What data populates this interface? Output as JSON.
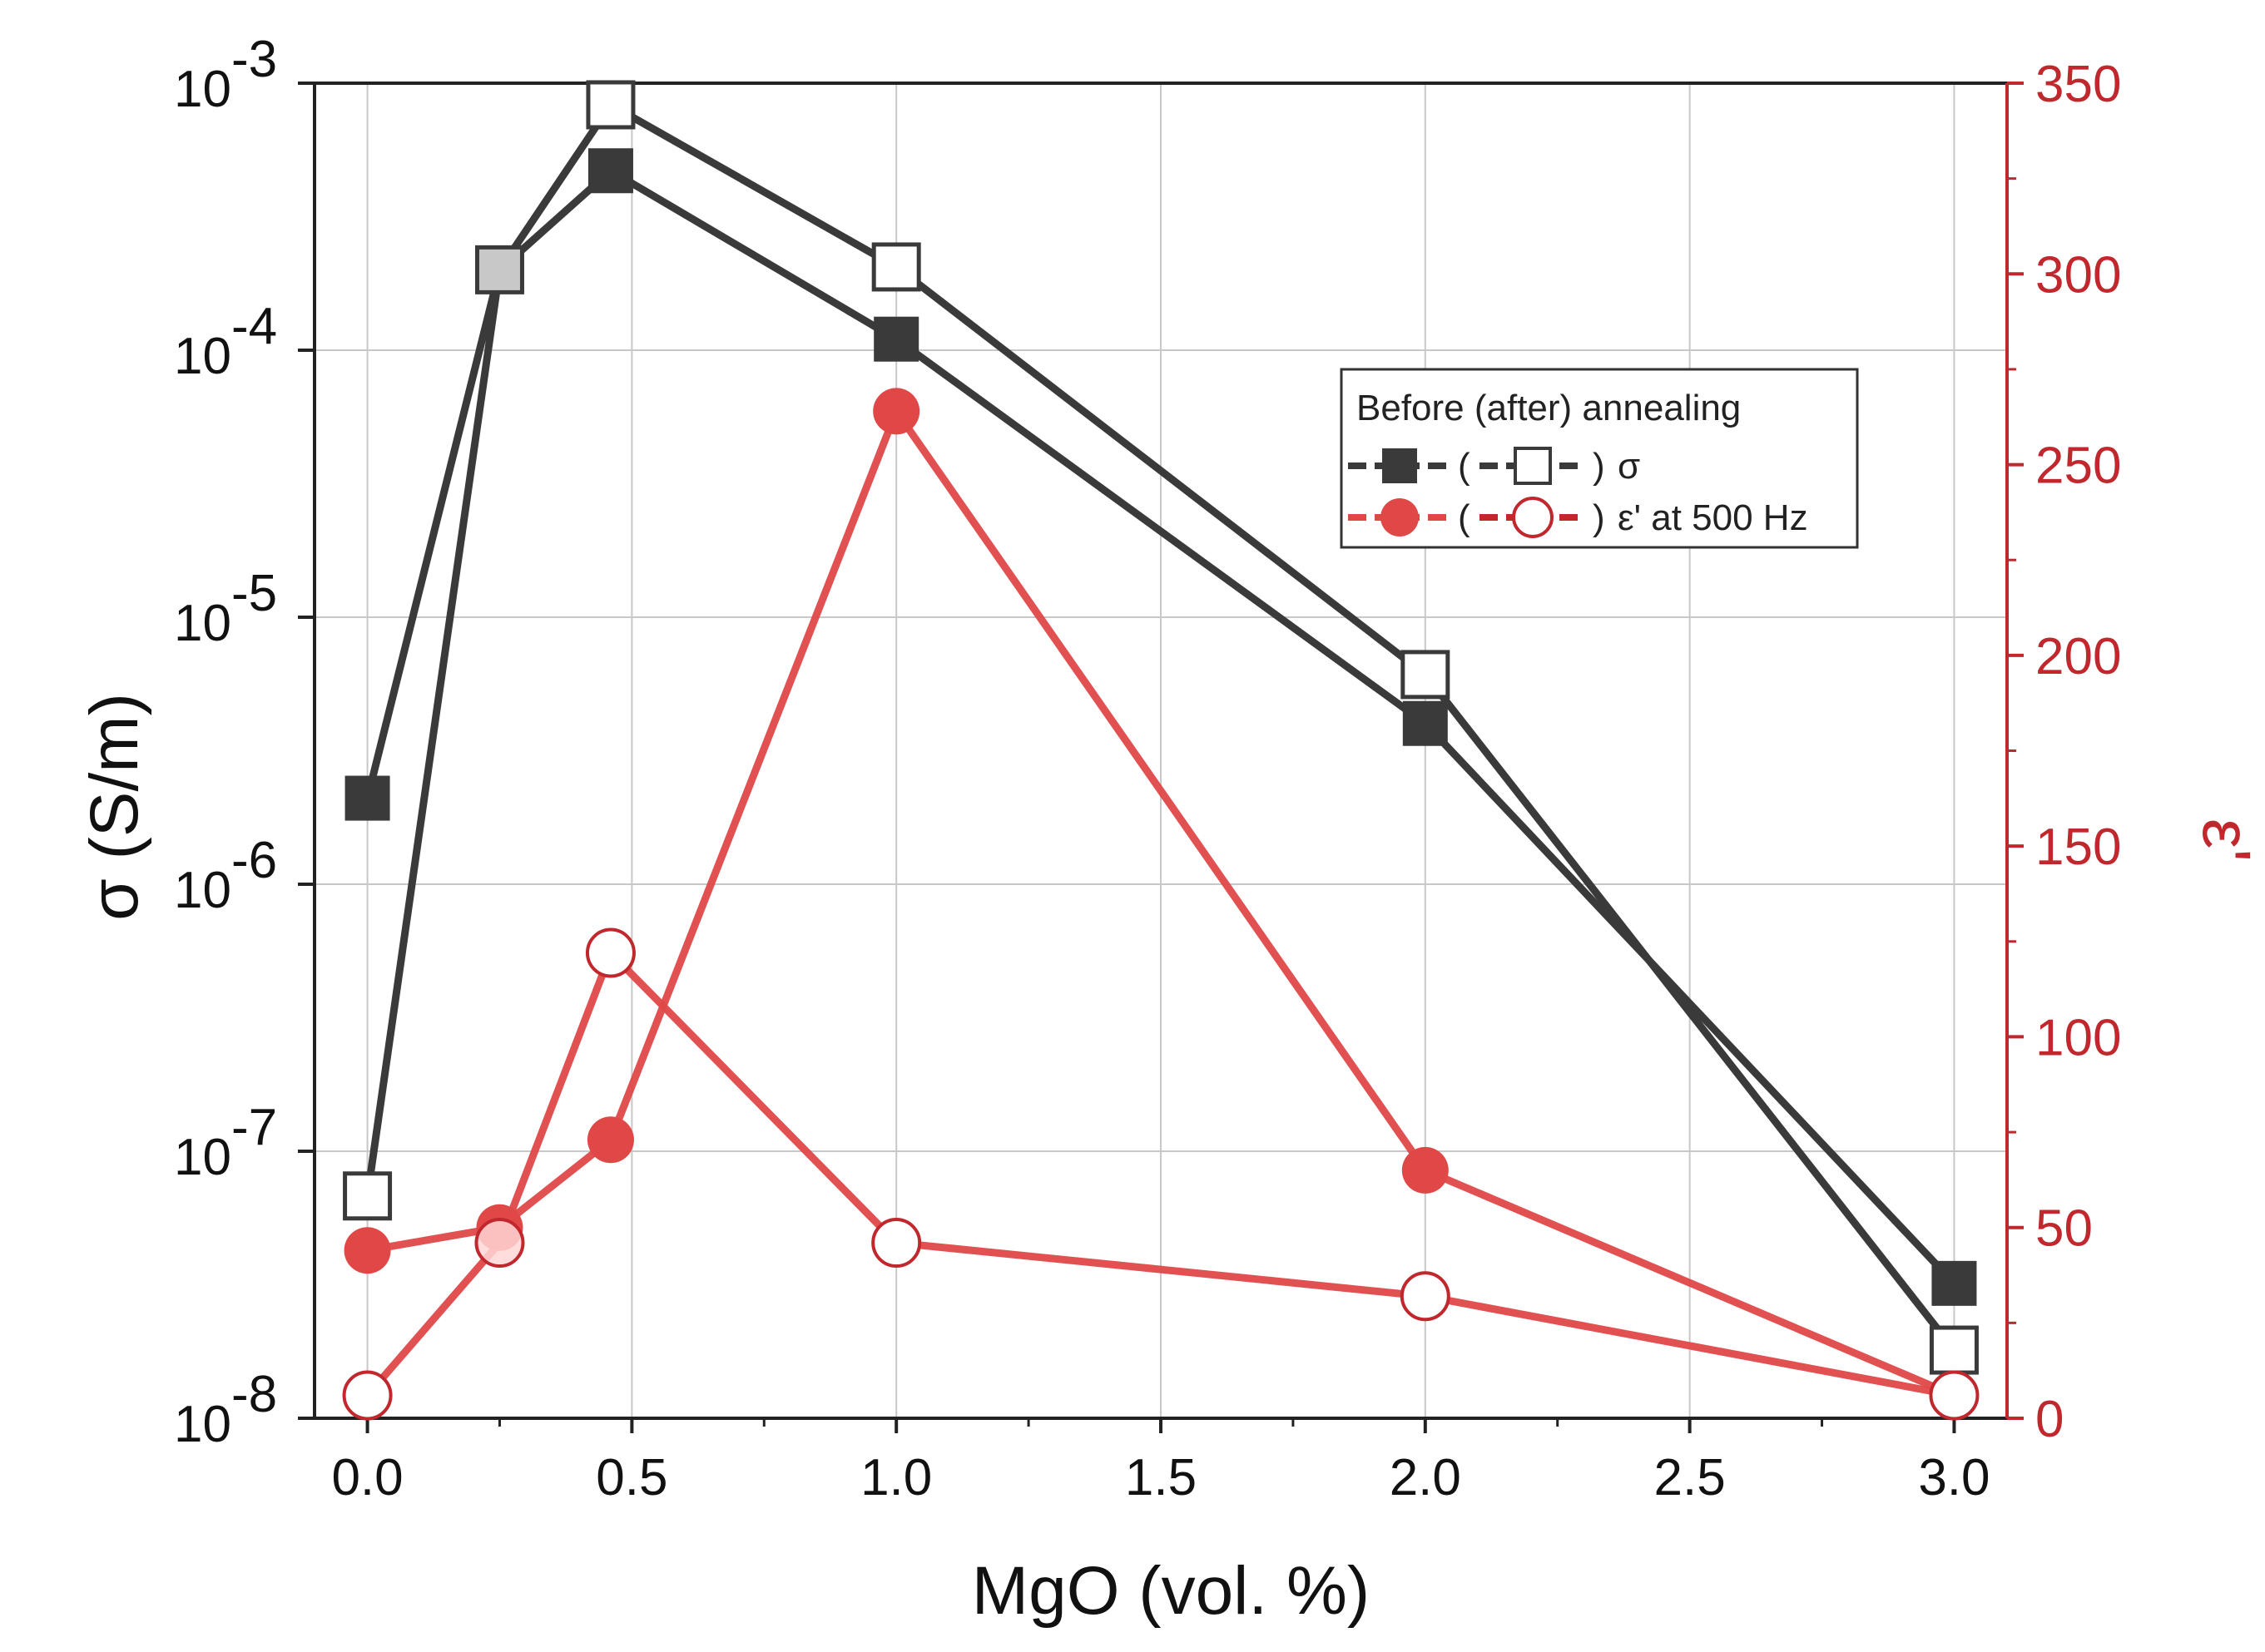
{
  "chart_data": {
    "type": "line",
    "x_axis": {
      "label": "MgO (vol. %)",
      "range": [
        -0.1,
        3.1
      ],
      "ticks": [
        "0.0",
        "0.5",
        "1.0",
        "1.5",
        "2.0",
        "2.5",
        "3.0"
      ],
      "tick_values": [
        0.0,
        0.5,
        1.0,
        1.5,
        2.0,
        2.5,
        3.0
      ]
    },
    "y_axis_left": {
      "label": "σ (S/m)",
      "scale": "log",
      "range": [
        1e-08,
        0.001
      ],
      "tick_values": [
        -8,
        -7,
        -6,
        -5,
        -4,
        -3
      ],
      "tick_labels": [
        "10",
        "10",
        "10",
        "10",
        "10",
        "10"
      ],
      "tick_exponents": [
        "-8",
        "-7",
        "-6",
        "-5",
        "-4",
        "-3"
      ]
    },
    "y_axis_right": {
      "label": "ε'",
      "scale": "linear",
      "range": [
        0,
        350
      ],
      "ticks": [
        "0",
        "50",
        "100",
        "150",
        "200",
        "250",
        "300",
        "350"
      ],
      "tick_values": [
        0,
        50,
        100,
        150,
        200,
        250,
        300,
        350
      ],
      "color": "#c0282d"
    },
    "grid": true,
    "x": [
      0.0,
      0.25,
      0.46,
      1.0,
      2.0,
      3.0
    ],
    "series": [
      {
        "name": "σ before annealing",
        "axis": "left",
        "marker": "square-filled",
        "color": "#3a3a3a",
        "values": [
          2.1e-06,
          0.0002,
          0.00047,
          0.00011,
          4e-06,
          3.2e-08
        ]
      },
      {
        "name": "σ after annealing",
        "axis": "left",
        "marker": "square-open",
        "color": "#3a3a3a",
        "values": [
          6.8e-08,
          0.0002,
          0.00083,
          0.000205,
          6.1e-06,
          1.8e-08
        ]
      },
      {
        "name": "ε' before annealing",
        "axis": "right",
        "marker": "circle-filled",
        "color": "#e04848",
        "values": [
          44,
          50,
          73,
          264,
          65,
          6
        ]
      },
      {
        "name": "ε' after annealing",
        "axis": "right",
        "marker": "circle-open",
        "color": "#e04848",
        "values": [
          6,
          46,
          122,
          46,
          32,
          6
        ]
      }
    ],
    "legend": {
      "position": "upper-right",
      "title": "Before (after) annealing",
      "rows": [
        {
          "open": "(",
          "close": ")",
          "label": "σ"
        },
        {
          "open": "(",
          "close": ")",
          "label": "ε' at 500 Hz"
        }
      ]
    }
  },
  "colors": {
    "black_series": "#3a3a3a",
    "red_series": "#e04848",
    "red_axis": "#c0282d",
    "grid": "#c8c8c8"
  }
}
